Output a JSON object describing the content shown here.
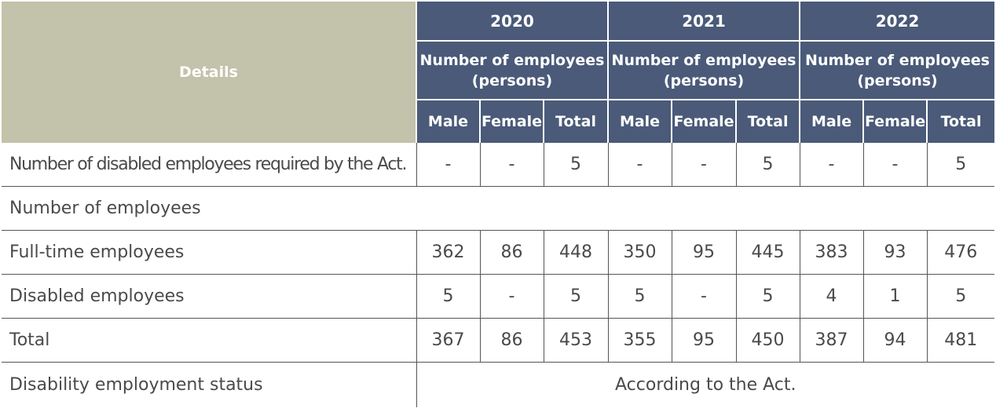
{
  "header": {
    "details_label": "Details",
    "years": [
      "2020",
      "2021",
      "2022"
    ],
    "unit_line1": "Number of employees",
    "unit_line2": "(persons)",
    "sub_headers": [
      "Male",
      "Female",
      "Total"
    ]
  },
  "rows": {
    "required": {
      "label": "Number of disabled employees required by the Act.",
      "values": [
        "-",
        "-",
        "5",
        "-",
        "-",
        "5",
        "-",
        "-",
        "5"
      ]
    },
    "section": {
      "label": "Number of employees"
    },
    "full_time": {
      "label": "Full-time employees",
      "values": [
        "362",
        "86",
        "448",
        "350",
        "95",
        "445",
        "383",
        "93",
        "476"
      ]
    },
    "disabled": {
      "label": "Disabled employees",
      "values": [
        "5",
        "-",
        "5",
        "5",
        "-",
        "5",
        "4",
        "1",
        "5"
      ]
    },
    "total": {
      "label": "Total",
      "values": [
        "367",
        "86",
        "453",
        "355",
        "95",
        "450",
        "387",
        "94",
        "481"
      ]
    },
    "status": {
      "label": "Disability employment status",
      "value": "According to the Act."
    }
  },
  "colors": {
    "header_details_bg": "#c3c2aa",
    "header_blue_bg": "#4a5a78",
    "header_text": "#ffffff",
    "body_text": "#4a4a4a"
  }
}
